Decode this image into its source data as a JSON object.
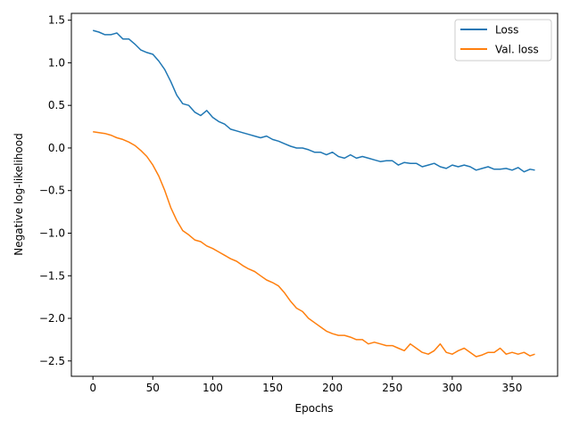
{
  "chart_data": {
    "type": "line",
    "title": "",
    "xlabel": "Epochs",
    "ylabel": "Negative log-likelihood",
    "xlim": [
      -18,
      388
    ],
    "ylim": [
      -2.68,
      1.58
    ],
    "xticks": [
      0,
      50,
      100,
      150,
      200,
      250,
      300,
      350
    ],
    "yticks": [
      -2.5,
      -2.0,
      -1.5,
      -1.0,
      -0.5,
      0.0,
      0.5,
      1.0,
      1.5
    ],
    "ytick_labels": [
      "−2.5",
      "−2.0",
      "−1.5",
      "−1.0",
      "−0.5",
      "0.0",
      "0.5",
      "1.0",
      "1.5"
    ],
    "grid": false,
    "legend_position": "upper-right",
    "series": [
      {
        "name": "Loss",
        "color": "#1f77b4",
        "x": [
          0,
          5,
          10,
          15,
          20,
          25,
          30,
          35,
          40,
          45,
          50,
          55,
          60,
          65,
          70,
          75,
          80,
          85,
          90,
          95,
          100,
          105,
          110,
          115,
          120,
          125,
          130,
          135,
          140,
          145,
          150,
          155,
          160,
          165,
          170,
          175,
          180,
          185,
          190,
          195,
          200,
          205,
          210,
          215,
          220,
          225,
          230,
          235,
          240,
          245,
          250,
          255,
          260,
          265,
          270,
          275,
          280,
          285,
          290,
          295,
          300,
          305,
          310,
          315,
          320,
          325,
          330,
          335,
          340,
          345,
          350,
          355,
          360,
          365,
          369
        ],
        "y": [
          1.38,
          1.36,
          1.33,
          1.33,
          1.35,
          1.28,
          1.28,
          1.22,
          1.15,
          1.12,
          1.1,
          1.02,
          0.92,
          0.78,
          0.62,
          0.52,
          0.5,
          0.42,
          0.38,
          0.44,
          0.36,
          0.31,
          0.28,
          0.22,
          0.2,
          0.18,
          0.16,
          0.14,
          0.12,
          0.14,
          0.1,
          0.08,
          0.05,
          0.02,
          0.0,
          0.0,
          -0.02,
          -0.05,
          -0.05,
          -0.08,
          -0.05,
          -0.1,
          -0.12,
          -0.08,
          -0.12,
          -0.1,
          -0.12,
          -0.14,
          -0.16,
          -0.15,
          -0.15,
          -0.2,
          -0.17,
          -0.18,
          -0.18,
          -0.22,
          -0.2,
          -0.18,
          -0.22,
          -0.24,
          -0.2,
          -0.22,
          -0.2,
          -0.22,
          -0.26,
          -0.24,
          -0.22,
          -0.25,
          -0.25,
          -0.24,
          -0.26,
          -0.23,
          -0.28,
          -0.25,
          -0.26
        ]
      },
      {
        "name": "Val. loss",
        "color": "#ff7f0e",
        "x": [
          0,
          5,
          10,
          15,
          20,
          25,
          30,
          35,
          40,
          45,
          50,
          55,
          60,
          65,
          70,
          75,
          80,
          85,
          90,
          95,
          100,
          105,
          110,
          115,
          120,
          125,
          130,
          135,
          140,
          145,
          150,
          155,
          160,
          165,
          170,
          175,
          180,
          185,
          190,
          195,
          200,
          205,
          210,
          215,
          220,
          225,
          230,
          235,
          240,
          245,
          250,
          255,
          260,
          265,
          270,
          275,
          280,
          285,
          290,
          295,
          300,
          305,
          310,
          315,
          320,
          325,
          330,
          335,
          340,
          345,
          350,
          355,
          360,
          365,
          369
        ],
        "y": [
          0.19,
          0.18,
          0.17,
          0.15,
          0.12,
          0.1,
          0.07,
          0.03,
          -0.03,
          -0.1,
          -0.2,
          -0.33,
          -0.5,
          -0.7,
          -0.85,
          -0.97,
          -1.02,
          -1.08,
          -1.1,
          -1.15,
          -1.18,
          -1.22,
          -1.26,
          -1.3,
          -1.33,
          -1.38,
          -1.42,
          -1.45,
          -1.5,
          -1.55,
          -1.58,
          -1.62,
          -1.7,
          -1.8,
          -1.88,
          -1.92,
          -2.0,
          -2.05,
          -2.1,
          -2.15,
          -2.18,
          -2.2,
          -2.2,
          -2.22,
          -2.25,
          -2.25,
          -2.3,
          -2.28,
          -2.3,
          -2.32,
          -2.32,
          -2.35,
          -2.38,
          -2.3,
          -2.35,
          -2.4,
          -2.42,
          -2.38,
          -2.3,
          -2.4,
          -2.42,
          -2.38,
          -2.35,
          -2.4,
          -2.45,
          -2.43,
          -2.4,
          -2.4,
          -2.35,
          -2.42,
          -2.4,
          -2.42,
          -2.4,
          -2.44,
          -2.42
        ]
      }
    ]
  }
}
